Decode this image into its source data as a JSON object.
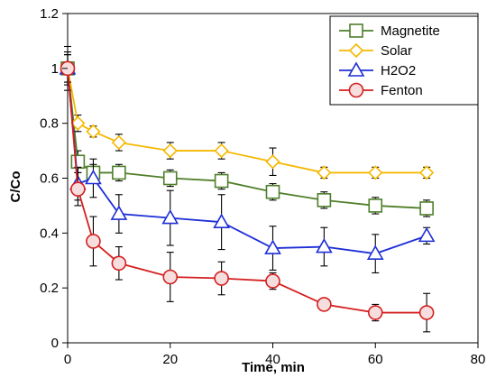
{
  "chart_data": {
    "type": "line",
    "title": "",
    "xlabel": "Time, min",
    "ylabel": "C/Co",
    "xlim": [
      0,
      80
    ],
    "ylim": [
      0,
      1.2
    ],
    "x_ticks": [
      "0",
      "20",
      "40",
      "60",
      "80"
    ],
    "y_ticks": [
      "0",
      "0.2",
      "0.4",
      "0.6",
      "0.8",
      "1",
      "1.2"
    ],
    "grid": false,
    "legend_position": "top-right",
    "series": [
      {
        "name": "Magnetite",
        "color": "#4f7f2a",
        "marker": "square",
        "x": [
          0,
          2,
          5,
          10,
          20,
          30,
          40,
          50,
          60,
          70
        ],
        "y": [
          1.0,
          0.66,
          0.62,
          0.62,
          0.6,
          0.59,
          0.55,
          0.52,
          0.5,
          0.49
        ],
        "error": [
          0.06,
          0.04,
          0.03,
          0.03,
          0.03,
          0.03,
          0.03,
          0.03,
          0.03,
          0.03
        ]
      },
      {
        "name": "Solar",
        "color": "#f5b800",
        "marker": "diamond",
        "x": [
          0,
          2,
          5,
          10,
          20,
          30,
          40,
          50,
          60,
          70
        ],
        "y": [
          1.0,
          0.8,
          0.77,
          0.73,
          0.7,
          0.7,
          0.66,
          0.62,
          0.62,
          0.62
        ],
        "error": [
          0.05,
          0.03,
          0.02,
          0.03,
          0.03,
          0.03,
          0.05,
          0.02,
          0.02,
          0.02
        ]
      },
      {
        "name": "H2O2",
        "color": "#1f2fd6",
        "marker": "triangle",
        "x": [
          0,
          2,
          5,
          10,
          20,
          30,
          40,
          50,
          60,
          70
        ],
        "y": [
          1.0,
          0.58,
          0.6,
          0.47,
          0.455,
          0.44,
          0.345,
          0.35,
          0.325,
          0.39
        ],
        "error": [
          0.08,
          0.06,
          0.07,
          0.07,
          0.1,
          0.1,
          0.08,
          0.07,
          0.07,
          0.03
        ]
      },
      {
        "name": "Fenton",
        "color": "#d42020",
        "marker": "circle",
        "x": [
          0,
          2,
          5,
          10,
          20,
          30,
          40,
          50,
          60,
          70
        ],
        "y": [
          1.0,
          0.56,
          0.37,
          0.29,
          0.24,
          0.235,
          0.225,
          0.14,
          0.11,
          0.11
        ],
        "error": [
          0.05,
          0.06,
          0.09,
          0.06,
          0.09,
          0.06,
          0.03,
          0.02,
          0.03,
          0.07
        ]
      }
    ]
  }
}
